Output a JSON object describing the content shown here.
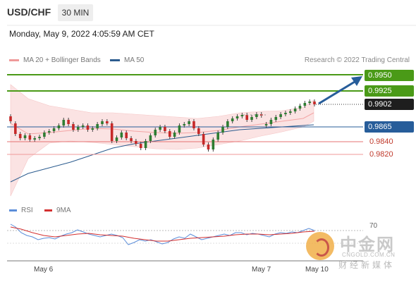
{
  "header": {
    "pair": "USD/CHF",
    "timeframe": "30 MIN"
  },
  "datetime": "Monday, May 9, 2022 4:05:59 AM CET",
  "legend": [
    {
      "label": "MA 20 + Bollinger Bands",
      "color": "#ef9a9a"
    },
    {
      "label": "MA 50",
      "color": "#2c5c8f"
    }
  ],
  "credit": "Research © 2022 Trading Central",
  "price_labels": {
    "r2": "0.9950",
    "r1": "0.9925",
    "last": "0.9902",
    "pivot": "0.9865",
    "s1": "0.9840",
    "s2": "0.9820"
  },
  "sub_legend": [
    {
      "label": "RSI",
      "color": "#5b8dd9"
    },
    {
      "label": "9MA",
      "color": "#d32f2f"
    }
  ],
  "rsi_level": "70",
  "x_labels": [
    "May 6",
    "May 7",
    "May 10"
  ],
  "watermark": {
    "cn": "中金网",
    "domain": "CNGOLD.COM.CN",
    "sub": "财经新媒体"
  },
  "colors": {
    "green": "#4a9a17",
    "blue": "#275d9a",
    "red": "#c0392b",
    "band": "#fbe3e3",
    "up": "#2e7d32",
    "down": "#c62828"
  }
}
